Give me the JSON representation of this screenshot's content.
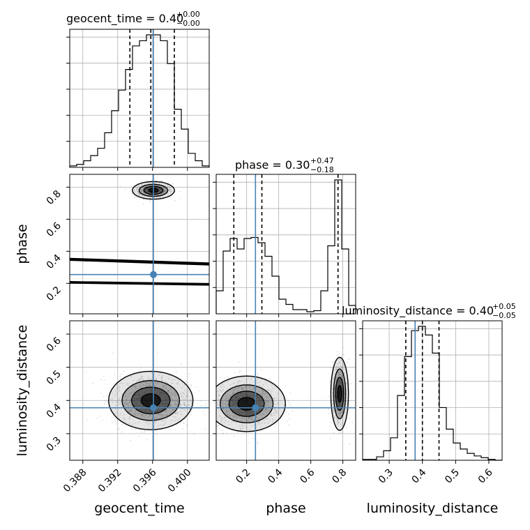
{
  "chart_data": {
    "type": "corner",
    "parameters": [
      "geocent_time",
      "phase",
      "luminosity_distance"
    ],
    "titles": [
      {
        "param": "geocent_time",
        "text": "geocent_time = 0.40",
        "plus": "+0.00",
        "minus": "−0.00"
      },
      {
        "param": "phase",
        "text": "phase = 0.30",
        "plus": "+0.47",
        "minus": "−0.18"
      },
      {
        "param": "luminosity_distance",
        "text": "luminosity_distance = 0.40",
        "plus": "+0.05",
        "minus": "−0.05"
      }
    ],
    "axis_labels": {
      "geocent_time": "geocent_time",
      "phase": "phase",
      "luminosity_distance": "luminosity_distance"
    },
    "ranges": {
      "geocent_time": [
        0.3865,
        0.4025
      ],
      "phase": [
        0.01,
        0.88
      ],
      "luminosity_distance": [
        0.22,
        0.64
      ]
    },
    "ticks": {
      "geocent_time": [
        "0.388",
        "0.392",
        "0.396",
        "0.400"
      ],
      "phase": [
        "0.2",
        "0.4",
        "0.6",
        "0.8"
      ],
      "phase_y": [
        "0.2",
        "0.4",
        "0.6",
        "0.8"
      ],
      "luminosity_distance": [
        "0.3",
        "0.4",
        "0.5",
        "0.6"
      ],
      "luminosity_distance_y": [
        "0.3",
        "0.4",
        "0.5",
        "0.6"
      ]
    },
    "truths": {
      "geocent_time": 0.3961,
      "phase": 0.255,
      "luminosity_distance": 0.378
    },
    "quantiles": {
      "geocent_time": [
        0.3934,
        0.3958,
        0.3985
      ],
      "phase": [
        0.12,
        0.295,
        0.77
      ],
      "luminosity_distance": [
        0.35,
        0.4,
        0.45
      ]
    },
    "histograms": {
      "geocent_time": {
        "edges": [
          0.3865,
          0.3873,
          0.3881,
          0.3889,
          0.3897,
          0.3905,
          0.3913,
          0.3921,
          0.3929,
          0.3937,
          0.3945,
          0.3953,
          0.3961,
          0.3969,
          0.3977,
          0.3985,
          0.3993,
          0.4001,
          0.4009,
          0.4017,
          0.4025
        ],
        "counts": [
          2,
          4,
          9,
          16,
          26,
          47,
          77,
          105,
          133,
          165,
          172,
          180,
          180,
          172,
          141,
          79,
          52,
          19,
          9,
          2
        ]
      },
      "phase": {
        "edges": [
          0.01,
          0.0535,
          0.097,
          0.1405,
          0.184,
          0.2275,
          0.271,
          0.3145,
          0.358,
          0.4015,
          0.445,
          0.4885,
          0.532,
          0.5755,
          0.619,
          0.6625,
          0.706,
          0.7495,
          0.793,
          0.8365,
          0.88
        ],
        "counts": [
          22,
          60,
          72,
          62,
          72,
          73,
          68,
          55,
          36,
          14,
          9,
          4,
          4,
          2,
          3,
          22,
          65,
          128,
          62,
          8
        ]
      },
      "luminosity_distance": {
        "edges": [
          0.22,
          0.241,
          0.262,
          0.283,
          0.304,
          0.325,
          0.346,
          0.367,
          0.388,
          0.409,
          0.43,
          0.451,
          0.472,
          0.493,
          0.514,
          0.535,
          0.556,
          0.577,
          0.598,
          0.619,
          0.64
        ],
        "counts": [
          1,
          1,
          4,
          11,
          26,
          75,
          120,
          150,
          155,
          145,
          124,
          61,
          36,
          20,
          13,
          8,
          5,
          3,
          1,
          0
        ]
      }
    }
  }
}
